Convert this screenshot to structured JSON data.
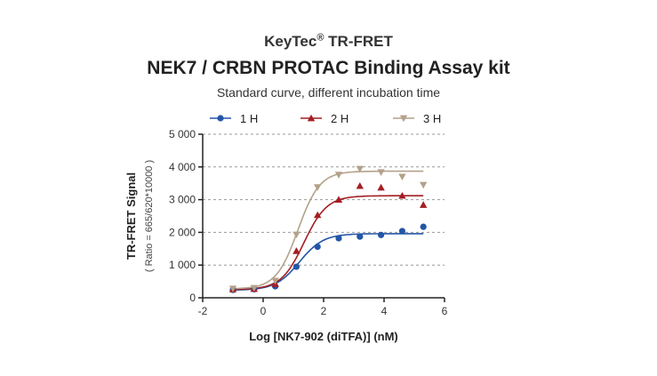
{
  "header": {
    "brand": "KeyTec",
    "brand_mark": "®",
    "brand_suffix": " TR-FRET",
    "title": "NEK7 / CRBN PROTAC Binding Assay kit",
    "subtitle": "Standard curve, different incubation time"
  },
  "chart_data": {
    "type": "scatter",
    "xlabel": "Log [NK7-902 (diTFA)] (nM)",
    "ylabel": "TR-FRET Signal",
    "ylabel_sub": "( Ratio = 665/620*10000 )",
    "xlim": [
      -2,
      6
    ],
    "ylim": [
      0,
      5000
    ],
    "x_ticks": [
      -2,
      0,
      2,
      4,
      6
    ],
    "y_ticks": [
      0,
      1000,
      2000,
      3000,
      4000,
      5000
    ],
    "y_tick_labels": [
      "0",
      "1 000",
      "2 000",
      "3 000",
      "4 000",
      "5 000"
    ],
    "grid": "horizontal-dashed",
    "legend_position": "top",
    "fit": "sigmoidal-curve",
    "series": [
      {
        "name": "1 H",
        "color": "#2356a5",
        "marker": "circle",
        "x": [
          -1.0,
          -0.3,
          0.4,
          1.1,
          1.8,
          2.5,
          3.2,
          3.9,
          4.6,
          5.3
        ],
        "y": [
          240,
          260,
          350,
          950,
          1560,
          1820,
          1870,
          1920,
          2040,
          2170
        ],
        "fit": {
          "bottom": 230,
          "top": 1960,
          "logEC50": 1.2,
          "hill": 1.1
        }
      },
      {
        "name": "2 H",
        "color": "#a41e22",
        "marker": "triangle-up",
        "x": [
          -1.0,
          -0.3,
          0.4,
          1.1,
          1.8,
          2.5,
          3.2,
          3.9,
          4.6,
          5.3
        ],
        "y": [
          260,
          270,
          420,
          1430,
          2530,
          3000,
          3420,
          3370,
          3120,
          2840
        ],
        "fit": {
          "bottom": 250,
          "top": 3120,
          "logEC50": 1.35,
          "hill": 1.15
        }
      },
      {
        "name": "3 H",
        "color": "#b3a18a",
        "marker": "triangle-down",
        "x": [
          -1.0,
          -0.3,
          0.4,
          1.1,
          1.8,
          2.5,
          3.2,
          3.9,
          4.6,
          5.3
        ],
        "y": [
          280,
          300,
          520,
          1930,
          3380,
          3760,
          3940,
          3840,
          3700,
          3450
        ],
        "fit": {
          "bottom": 270,
          "top": 3870,
          "logEC50": 1.15,
          "hill": 1.2
        }
      }
    ]
  }
}
